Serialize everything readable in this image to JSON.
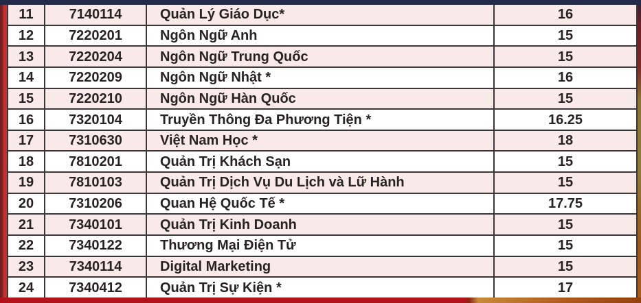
{
  "colors": {
    "row_pink": "#f9e9e8",
    "row_white": "#ffffff",
    "grid_line": "#3a3637",
    "text_color": "#272223",
    "top_bar_navy": "#232b49",
    "left_strip_red": "#c62f30",
    "bottom_bar_red": "#b2121b",
    "gold_light": "#c78b3a",
    "gold_dark": "#93410f"
  },
  "table": {
    "rows": [
      {
        "no": "11",
        "code": "7140114",
        "major": "Quản Lý Giáo Dục*",
        "score": "16"
      },
      {
        "no": "12",
        "code": "7220201",
        "major": "Ngôn Ngữ Anh",
        "score": "15"
      },
      {
        "no": "13",
        "code": "7220204",
        "major": "Ngôn Ngữ Trung Quốc",
        "score": "15"
      },
      {
        "no": "14",
        "code": "7220209",
        "major": "Ngôn Ngữ Nhật *",
        "score": "16"
      },
      {
        "no": "15",
        "code": "7220210",
        "major": "Ngôn Ngữ Hàn Quốc",
        "score": "15"
      },
      {
        "no": "16",
        "code": "7320104",
        "major": "Truyền Thông Đa Phương Tiện *",
        "score": "16.25"
      },
      {
        "no": "17",
        "code": "7310630",
        "major": "Việt Nam Học *",
        "score": "18"
      },
      {
        "no": "18",
        "code": "7810201",
        "major": "Quản Trị Khách Sạn",
        "score": "15"
      },
      {
        "no": "19",
        "code": "7810103",
        "major": "Quản Trị Dịch Vụ Du Lịch và Lữ Hành",
        "score": "15"
      },
      {
        "no": "20",
        "code": "7310206",
        "major": "Quan Hệ Quốc Tế *",
        "score": "17.75"
      },
      {
        "no": "21",
        "code": "7340101",
        "major": "Quản Trị Kinh Doanh",
        "score": "15"
      },
      {
        "no": "22",
        "code": "7340122",
        "major": "Thương Mại Điện Tử",
        "score": "15"
      },
      {
        "no": "23",
        "code": "7340114",
        "major": "Digital Marketing",
        "score": "15"
      },
      {
        "no": "24",
        "code": "7340412",
        "major": "Quản Trị Sự Kiện *",
        "score": "17"
      }
    ]
  }
}
